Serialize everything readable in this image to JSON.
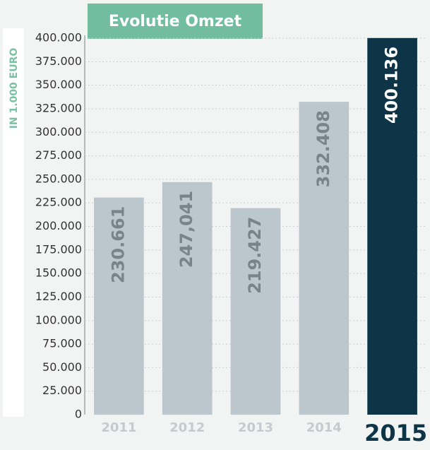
{
  "chart_data": {
    "type": "bar",
    "title": "Evolutie Omzet",
    "ylabel": "IN 1.000 EURO",
    "categories": [
      "2011",
      "2012",
      "2013",
      "2014",
      "2015"
    ],
    "values": [
      230661,
      247041,
      219427,
      332408,
      400136
    ],
    "value_labels": [
      "230.661",
      "247,041",
      "219.427",
      "332.408",
      "400.136"
    ],
    "colors": [
      "#bcc7cd",
      "#bcc7cd",
      "#bcc7cd",
      "#bcc7cd",
      "#0e3547"
    ],
    "ylim": [
      0,
      400000
    ],
    "yticks": [
      0,
      {
        "value": 25000,
        "label": "25.000"
      },
      {
        "value": 50000,
        "label": "50.000"
      },
      {
        "value": 75000,
        "label": "75.000"
      },
      {
        "value": 100000,
        "label": "100.000"
      },
      {
        "value": 125000,
        "label": "125.000"
      },
      {
        "value": 150000,
        "label": "150.000"
      },
      {
        "value": 175000,
        "label": "175.000"
      },
      {
        "value": 200000,
        "label": "200.000"
      },
      {
        "value": 225000,
        "label": "225.000"
      },
      {
        "value": 250000,
        "label": "250.000"
      },
      {
        "value": 275000,
        "label": "275.000"
      },
      {
        "value": 300000,
        "label": "300.000"
      },
      {
        "value": 325000,
        "label": "325.000"
      },
      {
        "value": 350000,
        "label": "350.000"
      },
      {
        "value": 375000,
        "label": "375.000"
      },
      {
        "value": 400000,
        "label": "400.000"
      }
    ],
    "grid": true
  }
}
